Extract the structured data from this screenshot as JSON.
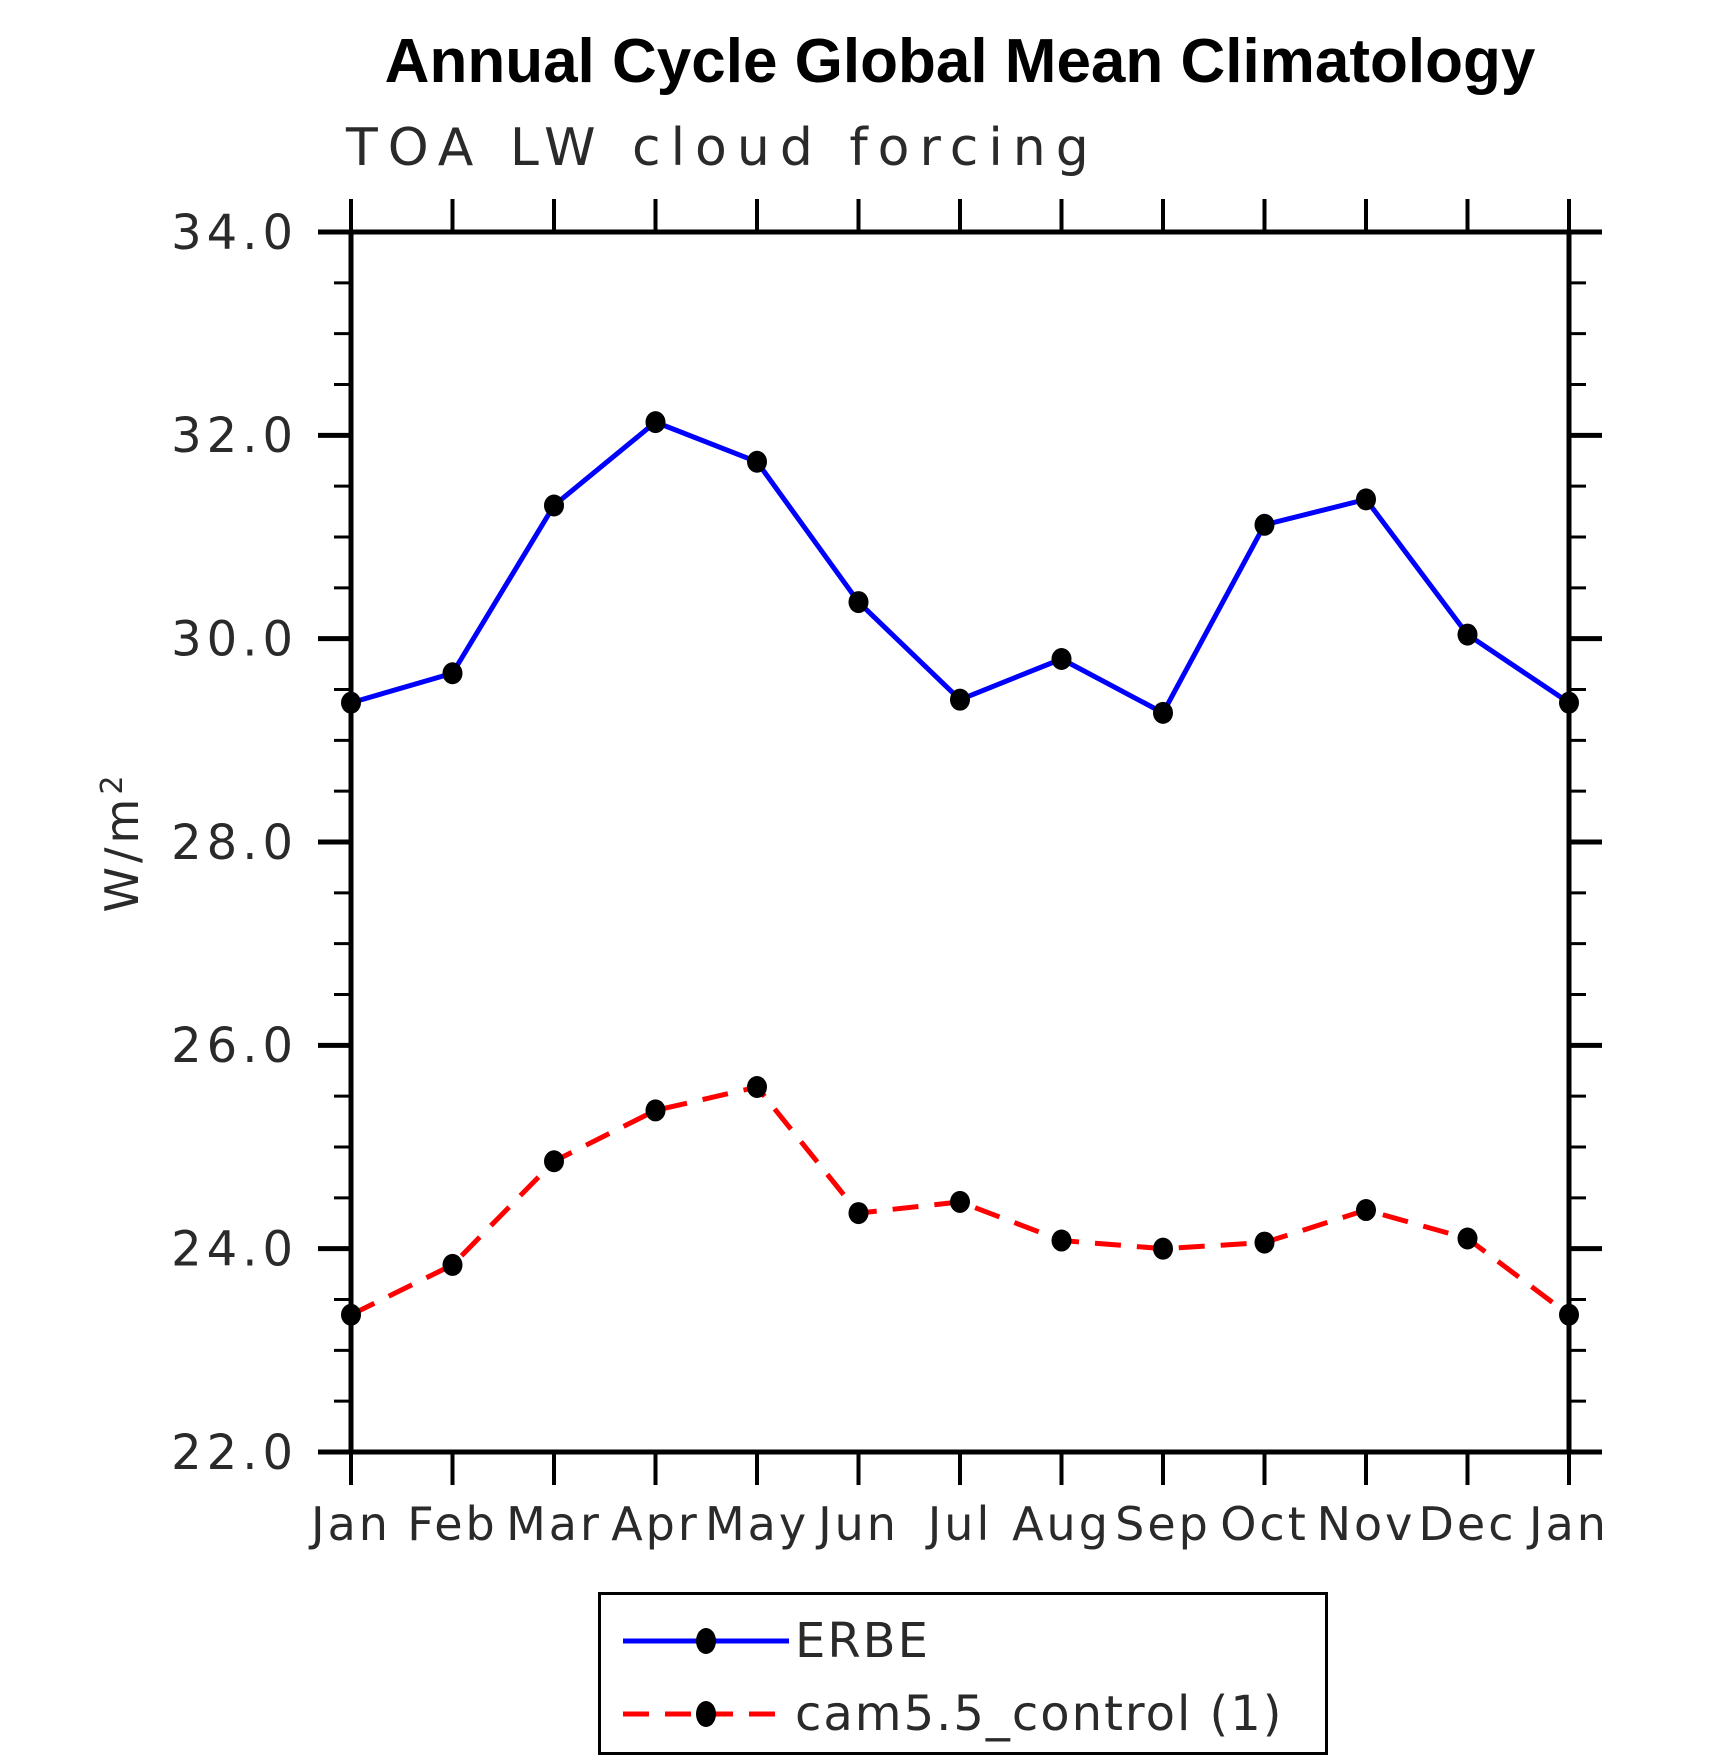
{
  "title": "Annual Cycle Global Mean Climatology",
  "subtitle": "TOA LW cloud forcing",
  "ylabel_base": "W/m",
  "ylabel_sup": "2",
  "chart_data": {
    "type": "line",
    "categories": [
      "Jan",
      "Feb",
      "Mar",
      "Apr",
      "May",
      "Jun",
      "Jul",
      "Aug",
      "Sep",
      "Oct",
      "Nov",
      "Dec",
      "Jan"
    ],
    "series": [
      {
        "name": "ERBE",
        "color": "#0000ff",
        "style": "solid",
        "values": [
          29.37,
          29.66,
          31.31,
          32.13,
          31.74,
          30.36,
          29.4,
          29.8,
          29.27,
          31.12,
          31.37,
          30.04,
          29.37
        ]
      },
      {
        "name": "cam5.5_control (1)",
        "color": "#ff0000",
        "style": "dashed",
        "values": [
          23.35,
          23.84,
          24.86,
          25.36,
          25.59,
          24.35,
          24.46,
          24.08,
          24.0,
          24.06,
          24.38,
          24.1,
          23.35
        ]
      }
    ],
    "marker_color": "#000000",
    "ylim": [
      22.0,
      34.0
    ],
    "yticks_major": [
      22.0,
      24.0,
      26.0,
      28.0,
      30.0,
      32.0,
      34.0
    ],
    "ytick_minor_step": 0.5,
    "xlabel": "",
    "ylabel": "W/m²",
    "grid": false,
    "legend_position": "bottom"
  }
}
